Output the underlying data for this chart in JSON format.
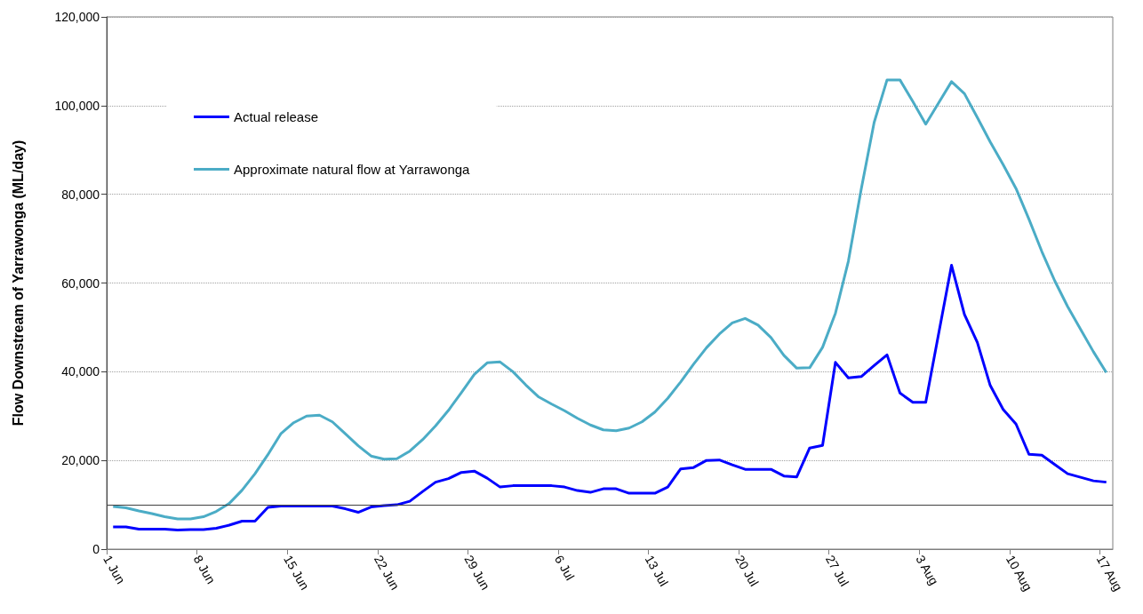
{
  "chart_data": {
    "type": "line",
    "ylabel": "Flow Downstream of Yarrawonga (ML/day)",
    "x": [
      "--06-01T12:00",
      "--06-02T12:00",
      "--06-03T12:00",
      "--06-04T12:00",
      "--06-05T12:00",
      "--06-06T12:00",
      "--06-07T12:00",
      "--06-08T12:00",
      "--06-09T12:00",
      "--06-10T12:00",
      "--06-11T12:00",
      "--06-12T12:00",
      "--06-13T12:00",
      "--06-14T12:00",
      "--06-15T12:00",
      "--06-16T12:00",
      "--06-17T12:00",
      "--06-18T12:00",
      "--06-19T12:00",
      "--06-20T12:00",
      "--06-21T12:00",
      "--06-22T12:00",
      "--06-23T12:00",
      "--06-24T12:00",
      "--06-25T12:00",
      "--06-26T12:00",
      "--06-27T12:00",
      "--06-28T12:00",
      "--06-29T12:00",
      "--06-30T12:00",
      "--07-01T12:00",
      "--07-02T12:00",
      "--07-03T12:00",
      "--07-04T12:00",
      "--07-05T12:00",
      "--07-06T12:00",
      "--07-07T12:00",
      "--07-08T12:00",
      "--07-09T12:00",
      "--07-10T12:00",
      "--07-11T12:00",
      "--07-12T12:00",
      "--07-13T12:00",
      "--07-14T12:00",
      "--07-15T12:00",
      "--07-16T12:00",
      "--07-17T12:00",
      "--07-18T12:00",
      "--07-19T12:00",
      "--07-20T12:00",
      "--07-21T12:00",
      "--07-22T12:00",
      "--07-23T12:00",
      "--07-24T12:00",
      "--07-25T12:00",
      "--07-26T12:00",
      "--07-27T12:00",
      "--07-28T12:00",
      "--07-29T12:00",
      "--07-30T12:00",
      "--07-31T12:00",
      "--08-01T12:00",
      "--08-02T12:00",
      "--08-03T12:00",
      "--08-04T12:00",
      "--08-05T12:00",
      "--08-06T12:00",
      "--08-07T12:00",
      "--08-08T12:00",
      "--08-09T12:00",
      "--08-10T12:00",
      "--08-11T12:00",
      "--08-12T12:00",
      "--08-13T12:00",
      "--08-14T12:00",
      "--08-15T12:00",
      "--08-16T12:00",
      "--08-17T12:00"
    ],
    "series": [
      {
        "name": "Actual release",
        "color": "#0000ff",
        "values": [
          5000,
          5000,
          4500,
          4500,
          4500,
          4300,
          4400,
          4400,
          4700,
          5400,
          6300,
          6300,
          9400,
          9700,
          9700,
          9700,
          9700,
          9700,
          9100,
          8300,
          9500,
          9800,
          10000,
          10800,
          13000,
          15100,
          15900,
          17300,
          17600,
          16000,
          14000,
          14300,
          14300,
          14300,
          14300,
          14000,
          13200,
          12800,
          13600,
          13600,
          12600,
          12600,
          12600,
          14000,
          18100,
          18400,
          20000,
          20100,
          19000,
          18000,
          18000,
          18000,
          16500,
          16300,
          22800,
          23400,
          42100,
          38600,
          38900,
          41400,
          43800,
          35200,
          33100,
          33100,
          48600,
          64000,
          52900,
          46600,
          36900,
          31500,
          28200,
          21400,
          21200,
          19100,
          17000,
          16200,
          15400,
          15100
        ]
      },
      {
        "name": "Approximate natural flow at Yarrawonga",
        "color": "#4bacc6",
        "values": [
          9600,
          9300,
          8600,
          8000,
          7300,
          6800,
          6800,
          7300,
          8500,
          10300,
          13300,
          17000,
          21300,
          26000,
          28500,
          30000,
          30200,
          28700,
          26000,
          23300,
          21000,
          20300,
          20400,
          22100,
          24700,
          27800,
          31300,
          35300,
          39400,
          42000,
          42200,
          40000,
          37000,
          34300,
          32700,
          31200,
          29500,
          28000,
          26900,
          26700,
          27300,
          28700,
          30900,
          34000,
          37700,
          41700,
          45400,
          48500,
          51000,
          52000,
          50500,
          47700,
          43700,
          40800,
          40900,
          45500,
          53200,
          64900,
          81200,
          96200,
          105800,
          105800,
          100900,
          95800,
          100600,
          105400,
          102700,
          97300,
          91800,
          86700,
          81300,
          74400,
          67100,
          60500,
          54700,
          49600,
          44500,
          39800
        ]
      }
    ],
    "xlim": [
      "--06-01",
      "--08-18"
    ],
    "xticks": [
      {
        "value": "--06-01",
        "label": "1 Jun"
      },
      {
        "value": "--06-08",
        "label": "8 Jun"
      },
      {
        "value": "--06-15",
        "label": "15 Jun"
      },
      {
        "value": "--06-22",
        "label": "22 Jun"
      },
      {
        "value": "--06-29",
        "label": "29 Jun"
      },
      {
        "value": "--07-06",
        "label": "6 Jul"
      },
      {
        "value": "--07-13",
        "label": "13 Jul"
      },
      {
        "value": "--07-20",
        "label": "20 Jul"
      },
      {
        "value": "--07-27",
        "label": "27 Jul"
      },
      {
        "value": "--08-03",
        "label": "3 Aug"
      },
      {
        "value": "--08-10",
        "label": "10 Aug"
      },
      {
        "value": "--08-17",
        "label": "17 Aug"
      }
    ],
    "ylim": [
      0,
      120000
    ],
    "yticks": [
      0,
      {
        "value": 20000,
        "label": "20,000"
      },
      {
        "value": 40000,
        "label": "40,000"
      },
      {
        "value": 60000,
        "label": "60,000"
      },
      {
        "value": 80000,
        "label": "80,000"
      },
      {
        "value": 100000,
        "label": "100,000"
      },
      {
        "value": 120000,
        "label": "120,000"
      }
    ],
    "ref_lines": [
      {
        "axis": "y",
        "value": 10000,
        "color": "#404040"
      }
    ],
    "grid": "y",
    "legend": "top left"
  }
}
